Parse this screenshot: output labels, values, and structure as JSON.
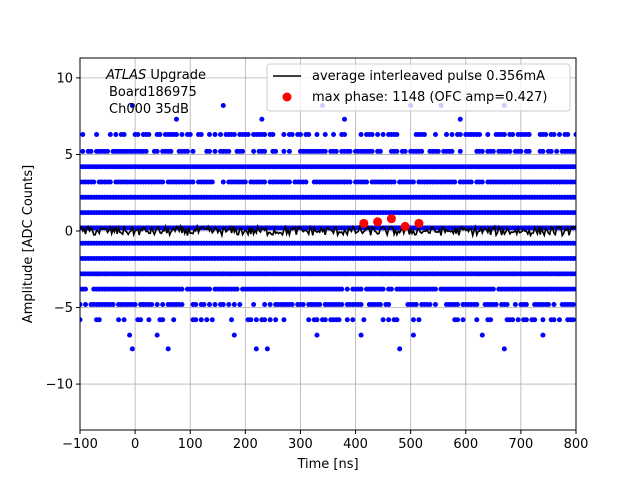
{
  "chart_data": {
    "type": "scatter",
    "xlabel": "Time [ns]",
    "ylabel": "Amplitude [ADC Counts]",
    "xlim": [
      -100,
      800
    ],
    "ylim": [
      -13,
      11.3
    ],
    "xticks": [
      -100,
      0,
      100,
      200,
      300,
      400,
      500,
      600,
      700,
      800
    ],
    "yticks": [
      -10,
      -5,
      0,
      5,
      10
    ],
    "grid": true,
    "legend_placement": "upper-right",
    "annotation": {
      "italic_part": "ATLAS",
      "line1_rest": " Upgrade",
      "line2": "Board186975",
      "line3": "Ch000 35dB"
    },
    "background_samples": {
      "color": "#0000ff",
      "x_start": -100,
      "x_end": 800,
      "x_step": 5,
      "levels": [
        {
          "y": 6.3,
          "density": 0.55
        },
        {
          "y": 5.2,
          "density": 0.7
        },
        {
          "y": 4.2,
          "density": 1.0
        },
        {
          "y": 3.2,
          "density": 0.9
        },
        {
          "y": 2.2,
          "density": 1.0
        },
        {
          "y": 1.2,
          "density": 1.0
        },
        {
          "y": 0.2,
          "density": 1.0
        },
        {
          "y": -0.8,
          "density": 1.0
        },
        {
          "y": -1.8,
          "density": 1.0
        },
        {
          "y": -2.8,
          "density": 1.0
        },
        {
          "y": -3.8,
          "density": 0.9
        },
        {
          "y": -4.8,
          "density": 0.7
        },
        {
          "y": -5.8,
          "density": 0.35
        }
      ],
      "sparse_points": [
        {
          "x": -5,
          "y": 8.2
        },
        {
          "x": 160,
          "y": 8.2
        },
        {
          "x": 340,
          "y": 8.2
        },
        {
          "x": 500,
          "y": 8.2
        },
        {
          "x": 555,
          "y": 8.2
        },
        {
          "x": 670,
          "y": 8.2
        },
        {
          "x": 75,
          "y": 7.3
        },
        {
          "x": 230,
          "y": 7.3
        },
        {
          "x": 380,
          "y": 7.3
        },
        {
          "x": 590,
          "y": 7.3
        },
        {
          "x": -10,
          "y": -6.8
        },
        {
          "x": 40,
          "y": -6.8
        },
        {
          "x": 180,
          "y": -6.8
        },
        {
          "x": 330,
          "y": -6.8
        },
        {
          "x": 410,
          "y": -6.8
        },
        {
          "x": 505,
          "y": -6.8
        },
        {
          "x": 630,
          "y": -6.8
        },
        {
          "x": 740,
          "y": -6.8
        },
        {
          "x": -5,
          "y": -7.7
        },
        {
          "x": 60,
          "y": -7.7
        },
        {
          "x": 220,
          "y": -7.7
        },
        {
          "x": 240,
          "y": -7.7
        },
        {
          "x": 480,
          "y": -7.7
        },
        {
          "x": 670,
          "y": -7.7
        }
      ]
    },
    "series": [
      {
        "name": "average interleaved pulse 0.356mA",
        "type": "line",
        "color": "#000000",
        "x_start": -100,
        "x_end": 800,
        "x_step": 2.5,
        "y_base": 0.0,
        "noise_amplitude": 0.3
      },
      {
        "name": "max phase: 1148 (OFC amp=0.427)",
        "type": "scatter",
        "color": "#ff0000",
        "x": [
          415,
          440,
          465,
          490,
          515
        ],
        "y": [
          0.5,
          0.6,
          0.8,
          0.3,
          0.5
        ]
      }
    ]
  }
}
